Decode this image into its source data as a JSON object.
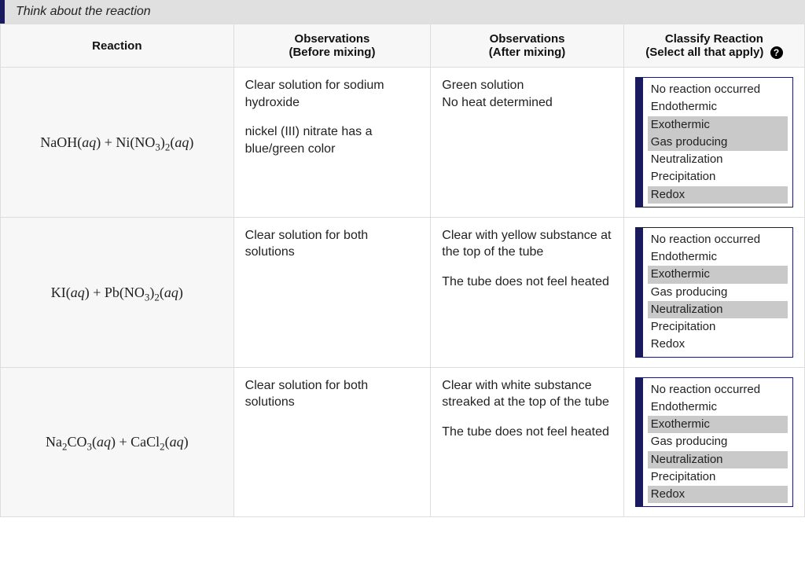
{
  "colors": {
    "accent": "#1a1a5e",
    "header_bg": "#f7f7f7",
    "banner_bg": "#e0e0e0",
    "selected_bg": "#c9c9c9",
    "border": "#dddddd"
  },
  "banner_text": "Think about the reaction",
  "headers": {
    "reaction": "Reaction",
    "before_l1": "Observations",
    "before_l2": "(Before mixing)",
    "after_l1": "Observations",
    "after_l2": "(After mixing)",
    "classify_l1": "Classify Reaction",
    "classify_l2": "(Select all that apply)"
  },
  "help_icon_label": "?",
  "options": [
    "No reaction occurred",
    "Endothermic",
    "Exothermic",
    "Gas producing",
    "Neutralization",
    "Precipitation",
    "Redox"
  ],
  "rows": [
    {
      "reaction_html": "NaOH(<span class='aq'>aq</span>) + Ni(NO<sub>3</sub>)<sub>2</sub>(<span class='aq'>aq</span>)",
      "before_p1": "Clear solution for sodium hydroxide",
      "before_p2": "nickel (III) nitrate has a blue/green color",
      "after_p1": "Green solution",
      "after_p1b": "No heat determined",
      "after_p2": "",
      "selected": [
        2,
        3,
        6
      ]
    },
    {
      "reaction_html": "KI(<span class='aq'>aq</span>) + Pb(NO<sub>3</sub>)<sub>2</sub>(<span class='aq'>aq</span>)",
      "before_p1": "Clear solution for both solutions",
      "before_p2": "",
      "after_p1": "Clear with yellow substance at the top of the tube",
      "after_p1b": "",
      "after_p2": "The tube does not feel heated",
      "selected": [
        2,
        4
      ]
    },
    {
      "reaction_html": "Na<sub>2</sub>CO<sub>3</sub>(<span class='aq'>aq</span>) + CaCl<sub>2</sub>(<span class='aq'>aq</span>)",
      "before_p1": "Clear solution for both solutions",
      "before_p2": "",
      "after_p1": "Clear with white substance streaked at the top of the tube",
      "after_p1b": "",
      "after_p2": "The tube does not feel heated",
      "selected": [
        2,
        4,
        6
      ]
    }
  ]
}
